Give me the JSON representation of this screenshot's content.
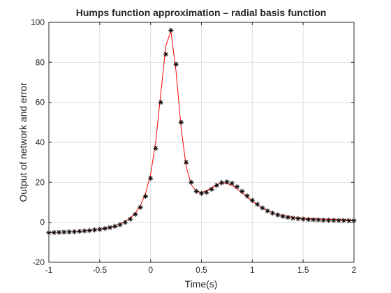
{
  "chart_data": {
    "type": "line",
    "title": "Humps function approximation – radial basis function",
    "xlabel": "Time(s)",
    "ylabel": "Output of network and error",
    "xlim": [
      -1,
      2
    ],
    "ylim": [
      -20,
      100
    ],
    "xticks": [
      "-1",
      "-0.5",
      "0",
      "0.5",
      "1",
      "1.5",
      "2"
    ],
    "yticks": [
      "-20",
      "0",
      "20",
      "40",
      "60",
      "80",
      "100"
    ],
    "grid": true,
    "x": [
      -1.0,
      -0.95,
      -0.9,
      -0.85,
      -0.8,
      -0.75,
      -0.7,
      -0.65,
      -0.6,
      -0.55,
      -0.5,
      -0.45,
      -0.4,
      -0.35,
      -0.3,
      -0.25,
      -0.2,
      -0.15,
      -0.1,
      -0.05,
      0.0,
      0.05,
      0.1,
      0.15,
      0.2,
      0.25,
      0.3,
      0.35,
      0.4,
      0.45,
      0.5,
      0.55,
      0.6,
      0.65,
      0.7,
      0.75,
      0.8,
      0.85,
      0.9,
      0.95,
      1.0,
      1.05,
      1.1,
      1.15,
      1.2,
      1.25,
      1.3,
      1.35,
      1.4,
      1.45,
      1.5,
      1.55,
      1.6,
      1.65,
      1.7,
      1.75,
      1.8,
      1.85,
      1.9,
      1.95,
      2.0
    ],
    "series": [
      {
        "color": "#ff0000",
        "marker": "none",
        "values": [
          -5.18,
          -5.1,
          -5.01,
          -4.91,
          -4.79,
          -4.65,
          -4.49,
          -4.3,
          -4.07,
          -3.79,
          -3.45,
          -3.02,
          -2.48,
          -1.78,
          -0.86,
          0.38,
          2.11,
          4.62,
          8.38,
          14.29,
          23.97,
          40.04,
          64.3,
          88.27,
          95.64,
          75.65,
          47.24,
          27.84,
          18.84,
          15.52,
          14.9,
          15.77,
          17.3,
          18.8,
          19.6,
          19.46,
          18.43,
          16.76,
          14.71,
          12.57,
          10.55,
          8.74,
          7.19,
          5.91,
          4.87,
          4.05,
          3.4,
          2.9,
          2.52,
          2.23,
          2.0,
          1.85,
          1.73,
          1.64,
          1.56,
          1.49,
          1.42,
          1.36,
          1.28,
          1.2,
          1.11
        ]
      }
    ],
    "markers": {
      "color": "#000000",
      "symbol": "asterisk",
      "x": [
        -1.0,
        -0.95,
        -0.9,
        -0.85,
        -0.8,
        -0.75,
        -0.7,
        -0.65,
        -0.6,
        -0.55,
        -0.5,
        -0.45,
        -0.4,
        -0.35,
        -0.3,
        -0.25,
        -0.2,
        -0.15,
        -0.1,
        -0.05,
        0.0,
        0.05,
        0.1,
        0.15,
        0.2,
        0.25,
        0.3,
        0.35,
        0.4,
        0.45,
        0.5,
        0.55,
        0.6,
        0.65,
        0.7,
        0.75,
        0.8,
        0.85,
        0.9,
        0.95,
        1.0,
        1.05,
        1.1,
        1.15,
        1.2,
        1.25,
        1.3,
        1.35,
        1.4,
        1.45,
        1.5,
        1.55,
        1.6,
        1.65,
        1.7,
        1.75,
        1.8,
        1.85,
        1.9,
        1.95,
        2.0
      ],
      "values": [
        -5.2,
        -5.1,
        -5.0,
        -4.9,
        -4.8,
        -4.7,
        -4.5,
        -4.3,
        -4.1,
        -3.8,
        -3.5,
        -3.1,
        -2.6,
        -2.0,
        -1.2,
        0.0,
        1.6,
        4.0,
        7.5,
        13.0,
        22.0,
        37.0,
        60.0,
        84.0,
        96.0,
        79.0,
        50.0,
        30.0,
        20.0,
        15.5,
        14.5,
        15.0,
        16.5,
        18.5,
        19.8,
        20.2,
        19.5,
        17.8,
        15.5,
        13.2,
        11.0,
        9.0,
        7.2,
        5.7,
        4.6,
        3.7,
        3.0,
        2.5,
        2.1,
        1.8,
        1.6,
        1.4,
        1.3,
        1.2,
        1.1,
        1.0,
        1.0,
        0.9,
        0.9,
        0.8,
        0.8
      ]
    }
  }
}
